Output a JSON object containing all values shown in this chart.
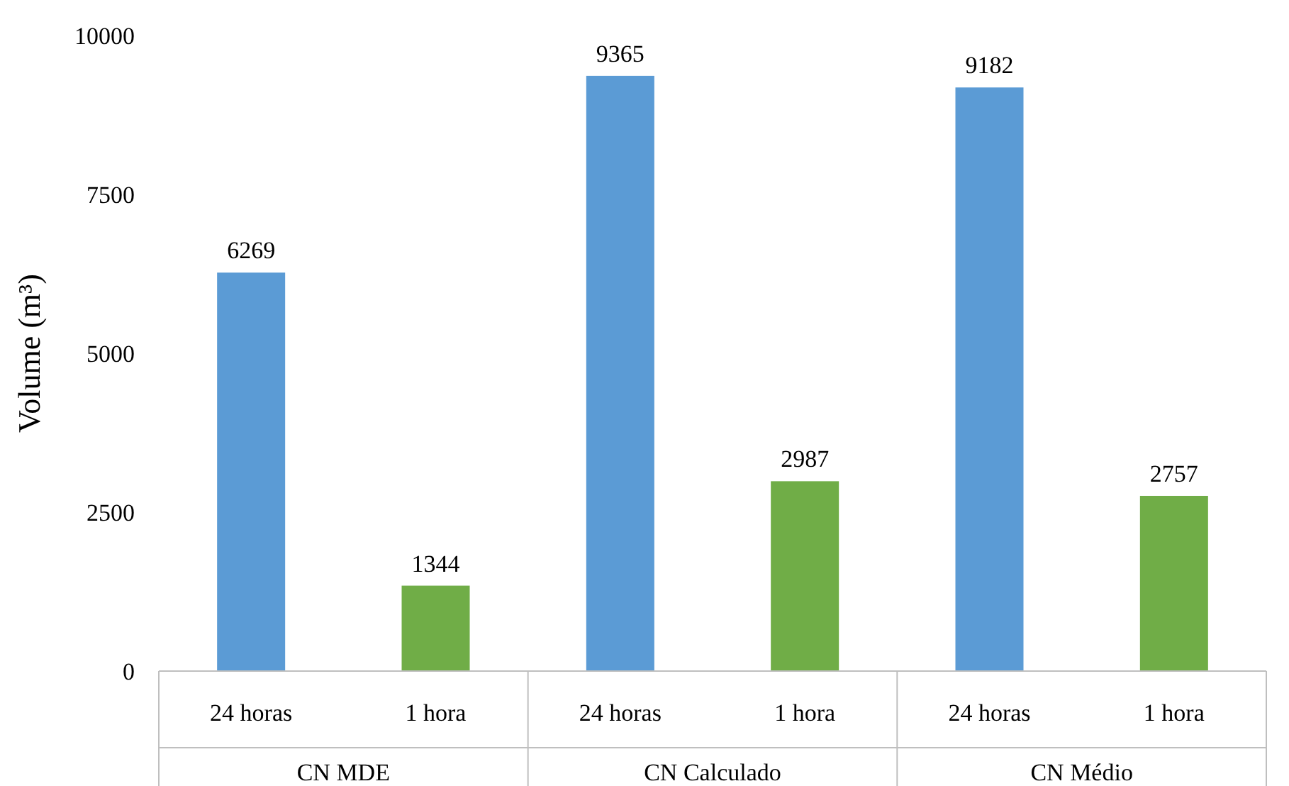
{
  "chart_data": {
    "type": "bar",
    "ylabel": "Volume (m³)",
    "categories": [
      "CN MDE",
      "CN Calculado",
      "CN Médio"
    ],
    "series": [
      {
        "name": "24 horas",
        "color": "#5b9bd5",
        "values": [
          6269,
          9365,
          9182
        ]
      },
      {
        "name": "1 hora",
        "color": "#70ad47",
        "values": [
          1344,
          2987,
          2757
        ]
      }
    ],
    "ylim": [
      0,
      10000
    ],
    "yticks": [
      0,
      2500,
      5000,
      7500,
      10000
    ],
    "data_labels": true
  }
}
